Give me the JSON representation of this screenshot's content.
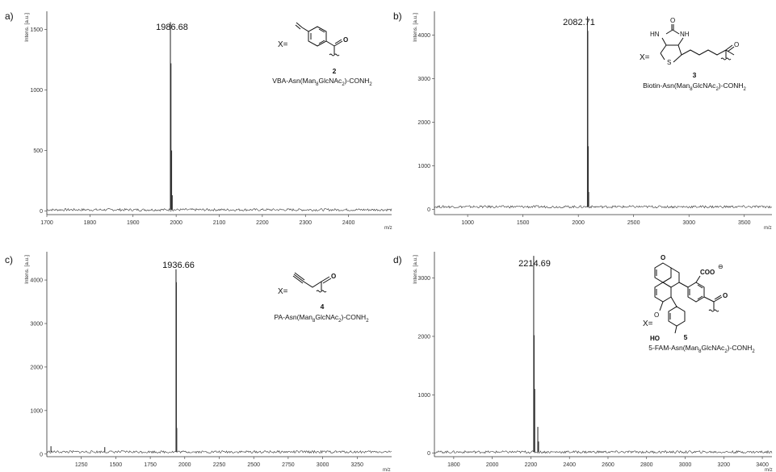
{
  "figure": {
    "y_axis_label": "Intens. [a.u.]",
    "x_unit": "m/z"
  },
  "chart_data": [
    {
      "type": "line",
      "panel": "a)",
      "xlim": [
        1700,
        2500
      ],
      "ylim": [
        -30,
        1650
      ],
      "x_ticks": [
        1700,
        1800,
        1900,
        2000,
        2100,
        2200,
        2300,
        2400
      ],
      "y_ticks": [
        0,
        500,
        1000,
        1500
      ],
      "baseline": 10,
      "peaks": [
        {
          "x": 1986.68,
          "y": 1560,
          "label": "1986.68"
        },
        {
          "x": 1988.0,
          "y": 1220
        },
        {
          "x": 1989.5,
          "y": 500
        },
        {
          "x": 1991.0,
          "y": 130
        }
      ],
      "compound_number": "2",
      "compound_name": "VBA-Asn(Man8GlcNAc2)-CONH2",
      "compound_name_parts": {
        "pre": "VBA-Asn(Man",
        "s1": "8",
        "mid": "GlcNAc",
        "s2": "2",
        "post": ")-CONH",
        "s3": "2"
      },
      "x_label_text": "X="
    },
    {
      "type": "line",
      "panel": "b)",
      "xlim": [
        700,
        3750
      ],
      "ylim": [
        -120,
        4550
      ],
      "x_ticks": [
        1000,
        1500,
        2000,
        2500,
        3000,
        3500
      ],
      "y_ticks": [
        0,
        1000,
        2000,
        3000,
        4000
      ],
      "baseline": 60,
      "peaks": [
        {
          "x": 2082.71,
          "y": 4430,
          "label": "2082.71"
        },
        {
          "x": 2086.0,
          "y": 4100
        },
        {
          "x": 2090.0,
          "y": 1450
        },
        {
          "x": 2094.0,
          "y": 400
        }
      ],
      "compound_number": "3",
      "compound_name": "Biotin-Asn(Man8GlcNAc2)-CONH2",
      "compound_name_parts": {
        "pre": "Biotin-Asn(Man",
        "s1": "8",
        "mid": "GlcNAc",
        "s2": "2",
        "post": ")-CONH",
        "s3": "2"
      },
      "x_label_text": "X=",
      "atoms": {
        "o": "O",
        "hn": "HN",
        "nh": "NH",
        "s": "S"
      }
    },
    {
      "type": "line",
      "panel": "c)",
      "xlim": [
        1000,
        3500
      ],
      "ylim": [
        -60,
        4650
      ],
      "x_ticks": [
        1250,
        1500,
        1750,
        2000,
        2250,
        2500,
        2750,
        3000,
        3250
      ],
      "y_ticks": [
        0,
        1000,
        2000,
        3000,
        4000
      ],
      "baseline": 50,
      "peaks": [
        {
          "x": 1936.66,
          "y": 4250,
          "label": "1936.66"
        },
        {
          "x": 1939.5,
          "y": 3950
        },
        {
          "x": 1942.0,
          "y": 600
        },
        {
          "x": 1420.0,
          "y": 160
        },
        {
          "x": 1030.0,
          "y": 180
        }
      ],
      "compound_number": "4",
      "compound_name": "PA-Asn(Man8GlcNAc2)-CONH2",
      "compound_name_parts": {
        "pre": "PA-Asn(Man",
        "s1": "8",
        "mid": "GlcNAc",
        "s2": "2",
        "post": ")-CONH",
        "s3": "2"
      },
      "x_label_text": "X="
    },
    {
      "type": "line",
      "panel": "d)",
      "xlim": [
        1700,
        3450
      ],
      "ylim": [
        -60,
        3450
      ],
      "x_ticks": [
        1800,
        2000,
        2200,
        2400,
        2600,
        2800,
        3000,
        3200,
        3400
      ],
      "y_ticks": [
        0,
        1000,
        2000,
        3000
      ],
      "baseline": 20,
      "peaks": [
        {
          "x": 2214.69,
          "y": 3380,
          "label": "2214.69"
        },
        {
          "x": 2217.0,
          "y": 2020
        },
        {
          "x": 2220.0,
          "y": 1100
        },
        {
          "x": 2236.0,
          "y": 450
        },
        {
          "x": 2240.0,
          "y": 200
        }
      ],
      "compound_number": "5",
      "compound_name": "5-FAM-Asn(Man8GlcNAc2)-CONH2",
      "compound_name_parts": {
        "pre": "5-FAM-Asn(Man",
        "s1": "8",
        "mid": "GlcNAc",
        "s2": "2",
        "post": ")-CONH",
        "s3": "2"
      },
      "x_label_text": "X=",
      "atoms": {
        "o": "O",
        "oring": "O",
        "ho": "HO",
        "coo": "COO",
        "minus": "⊖"
      }
    }
  ]
}
